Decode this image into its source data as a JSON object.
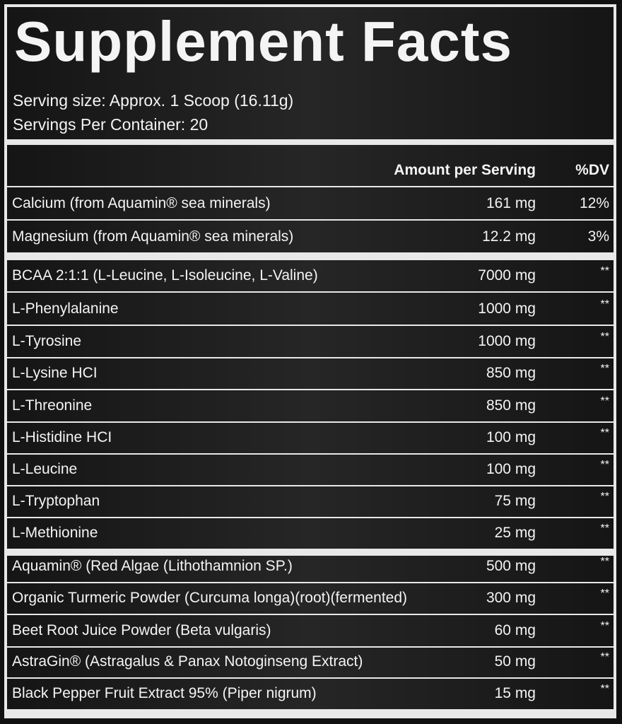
{
  "title": "Supplement Facts",
  "serving_size": "Serving size: Approx. 1 Scoop (16.11g)",
  "servings_per_container": "Servings Per Container: 20",
  "header": {
    "amount": "Amount per Serving",
    "dv": "%DV"
  },
  "rows": [
    {
      "name": "Calcium (from Aquamin® sea minerals)",
      "amount": "161 mg",
      "dv": "12%"
    },
    {
      "name": "Magnesium (from Aquamin® sea minerals)",
      "amount": "12.2 mg",
      "dv": "3%"
    },
    {
      "name": "BCAA 2:1:1 (L-Leucine, L-Isoleucine, L-Valine)",
      "amount": "7000 mg",
      "dv": "**"
    },
    {
      "name": "L-Phenylalanine",
      "amount": "1000 mg",
      "dv": "**"
    },
    {
      "name": "L-Tyrosine",
      "amount": "1000 mg",
      "dv": "**"
    },
    {
      "name": "L-Lysine HCI",
      "amount": "850 mg",
      "dv": "**"
    },
    {
      "name": "L-Threonine",
      "amount": "850 mg",
      "dv": "**"
    },
    {
      "name": "L-Histidine HCI",
      "amount": "100 mg",
      "dv": "**"
    },
    {
      "name": "L-Leucine",
      "amount": "100 mg",
      "dv": "**"
    },
    {
      "name": "L-Tryptophan",
      "amount": "75 mg",
      "dv": "**"
    },
    {
      "name": "L-Methionine",
      "amount": "25 mg",
      "dv": "**"
    },
    {
      "name": "Aquamin® (Red Algae (Lithothamnion SP.)",
      "amount": "500 mg",
      "dv": "**"
    },
    {
      "name": "Organic Turmeric Powder (Curcuma longa)(root)(fermented)",
      "amount": "300 mg",
      "dv": "**"
    },
    {
      "name": "Beet Root Juice Powder (Beta vulgaris)",
      "amount": "60 mg",
      "dv": "**"
    },
    {
      "name": "AstraGin® (Astragalus & Panax Notoginseng Extract)",
      "amount": "50 mg",
      "dv": "**"
    },
    {
      "name": "Black Pepper Fruit Extract 95% (Piper nigrum)",
      "amount": "15 mg",
      "dv": "**"
    }
  ]
}
